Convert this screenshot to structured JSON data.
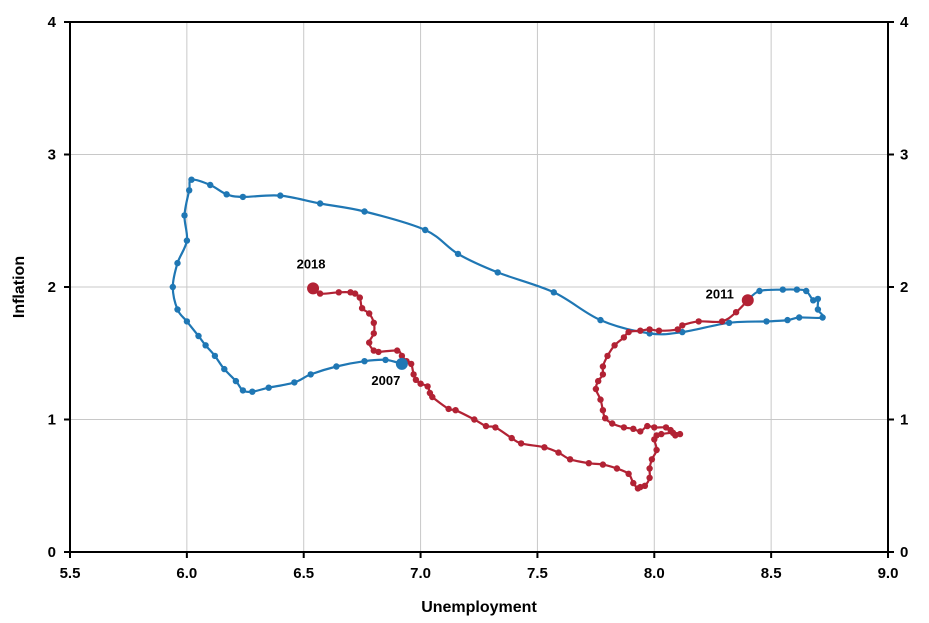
{
  "chart_data": {
    "type": "line",
    "title": "",
    "xlabel": "Unemployment",
    "ylabel": "Inflation",
    "xlim": [
      5.5,
      9.0
    ],
    "ylim": [
      0,
      4
    ],
    "x_ticks": [
      "5.5",
      "6.0",
      "6.5",
      "7.0",
      "7.5",
      "8.0",
      "8.5",
      "9.0"
    ],
    "y_ticks": [
      "0",
      "1",
      "2",
      "3",
      "4"
    ],
    "grid": true,
    "colors": {
      "blue": "#1f77b4",
      "red": "#b22234"
    },
    "series": [
      {
        "color": "#1f77b4",
        "points": [
          [
            6.92,
            1.42
          ],
          [
            6.85,
            1.45
          ],
          [
            6.76,
            1.44
          ],
          [
            6.64,
            1.4
          ],
          [
            6.53,
            1.34
          ],
          [
            6.46,
            1.28
          ],
          [
            6.35,
            1.24
          ],
          [
            6.28,
            1.21
          ],
          [
            6.24,
            1.22
          ],
          [
            6.21,
            1.29
          ],
          [
            6.16,
            1.38
          ],
          [
            6.12,
            1.48
          ],
          [
            6.08,
            1.56
          ],
          [
            6.05,
            1.63
          ],
          [
            6.0,
            1.74
          ],
          [
            5.96,
            1.83
          ],
          [
            5.94,
            2.0
          ],
          [
            5.96,
            2.18
          ],
          [
            6.0,
            2.35
          ],
          [
            5.99,
            2.54
          ],
          [
            6.01,
            2.73
          ],
          [
            6.02,
            2.81
          ],
          [
            6.1,
            2.77
          ],
          [
            6.17,
            2.7
          ],
          [
            6.24,
            2.68
          ],
          [
            6.4,
            2.69
          ],
          [
            6.57,
            2.63
          ],
          [
            6.76,
            2.57
          ],
          [
            7.02,
            2.43
          ],
          [
            7.16,
            2.25
          ],
          [
            7.33,
            2.11
          ],
          [
            7.57,
            1.96
          ],
          [
            7.77,
            1.75
          ],
          [
            7.98,
            1.65
          ],
          [
            8.12,
            1.66
          ],
          [
            8.32,
            1.73
          ],
          [
            8.48,
            1.74
          ],
          [
            8.57,
            1.75
          ],
          [
            8.62,
            1.77
          ],
          [
            8.72,
            1.77
          ],
          [
            8.7,
            1.83
          ],
          [
            8.7,
            1.91
          ],
          [
            8.68,
            1.9
          ],
          [
            8.65,
            1.97
          ],
          [
            8.61,
            1.98
          ],
          [
            8.55,
            1.98
          ],
          [
            8.45,
            1.97
          ],
          [
            8.4,
            1.9
          ]
        ]
      },
      {
        "color": "#b22234",
        "points": [
          [
            8.4,
            1.9
          ],
          [
            8.35,
            1.81
          ],
          [
            8.29,
            1.74
          ],
          [
            8.19,
            1.74
          ],
          [
            8.12,
            1.71
          ],
          [
            8.1,
            1.68
          ],
          [
            8.02,
            1.67
          ],
          [
            7.98,
            1.68
          ],
          [
            7.94,
            1.67
          ],
          [
            7.89,
            1.66
          ],
          [
            7.87,
            1.62
          ],
          [
            7.83,
            1.56
          ],
          [
            7.8,
            1.48
          ],
          [
            7.78,
            1.4
          ],
          [
            7.78,
            1.34
          ],
          [
            7.76,
            1.29
          ],
          [
            7.75,
            1.23
          ],
          [
            7.77,
            1.15
          ],
          [
            7.78,
            1.07
          ],
          [
            7.79,
            1.01
          ],
          [
            7.82,
            0.97
          ],
          [
            7.87,
            0.94
          ],
          [
            7.91,
            0.93
          ],
          [
            7.94,
            0.91
          ],
          [
            7.97,
            0.95
          ],
          [
            8.0,
            0.94
          ],
          [
            8.05,
            0.94
          ],
          [
            8.07,
            0.92
          ],
          [
            8.09,
            0.88
          ],
          [
            8.11,
            0.89
          ],
          [
            8.08,
            0.9
          ],
          [
            8.03,
            0.89
          ],
          [
            8.01,
            0.88
          ],
          [
            8.0,
            0.85
          ],
          [
            8.01,
            0.77
          ],
          [
            7.99,
            0.7
          ],
          [
            7.98,
            0.63
          ],
          [
            7.98,
            0.56
          ],
          [
            7.96,
            0.5
          ],
          [
            7.94,
            0.49
          ],
          [
            7.93,
            0.48
          ],
          [
            7.91,
            0.52
          ],
          [
            7.89,
            0.59
          ],
          [
            7.84,
            0.63
          ],
          [
            7.78,
            0.66
          ],
          [
            7.72,
            0.67
          ],
          [
            7.64,
            0.7
          ],
          [
            7.59,
            0.75
          ],
          [
            7.53,
            0.79
          ],
          [
            7.43,
            0.82
          ],
          [
            7.39,
            0.86
          ],
          [
            7.32,
            0.94
          ],
          [
            7.28,
            0.95
          ],
          [
            7.23,
            1.0
          ],
          [
            7.15,
            1.07
          ],
          [
            7.12,
            1.08
          ],
          [
            7.05,
            1.17
          ],
          [
            7.04,
            1.2
          ],
          [
            7.03,
            1.25
          ],
          [
            7.0,
            1.27
          ],
          [
            6.98,
            1.3
          ],
          [
            6.97,
            1.34
          ],
          [
            6.96,
            1.42
          ],
          [
            6.94,
            1.44
          ],
          [
            6.92,
            1.48
          ],
          [
            6.9,
            1.52
          ],
          [
            6.82,
            1.51
          ],
          [
            6.8,
            1.52
          ],
          [
            6.78,
            1.58
          ],
          [
            6.8,
            1.65
          ],
          [
            6.8,
            1.73
          ],
          [
            6.78,
            1.8
          ],
          [
            6.75,
            1.84
          ],
          [
            6.74,
            1.92
          ],
          [
            6.72,
            1.95
          ],
          [
            6.7,
            1.96
          ],
          [
            6.65,
            1.96
          ],
          [
            6.57,
            1.95
          ],
          [
            6.54,
            1.99
          ]
        ]
      }
    ],
    "highlights": [
      {
        "x": 6.92,
        "y": 1.42,
        "color": "#1f77b4"
      },
      {
        "x": 8.4,
        "y": 1.9,
        "color": "#b22234"
      },
      {
        "x": 6.54,
        "y": 1.99,
        "color": "#b22234"
      }
    ],
    "annotations": [
      {
        "text": "2007",
        "x": 6.92,
        "y": 1.42
      },
      {
        "text": "2011",
        "x": 8.4,
        "y": 1.9
      },
      {
        "text": "2018",
        "x": 6.54,
        "y": 1.99
      }
    ]
  }
}
